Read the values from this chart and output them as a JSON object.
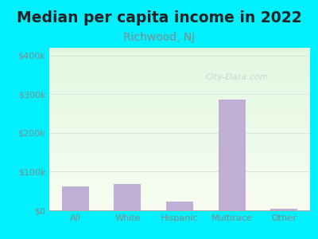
{
  "title": "Median per capita income in 2022",
  "subtitle": "Richwood, NJ",
  "categories": [
    "All",
    "White",
    "Hispanic",
    "Multirace",
    "Other"
  ],
  "values": [
    62000,
    67000,
    22000,
    287000,
    5000
  ],
  "bar_color": "#c0aed4",
  "title_fontsize": 13.5,
  "title_color": "#222222",
  "subtitle_fontsize": 10,
  "subtitle_color": "#888888",
  "tick_color": "#888888",
  "tick_fontsize": 8,
  "ylim": [
    0,
    420000
  ],
  "yticks": [
    0,
    100000,
    200000,
    300000,
    400000
  ],
  "ytick_labels": [
    "$0",
    "$100k",
    "$200k",
    "$300k",
    "$400k"
  ],
  "background_outer": "#00f0ff",
  "watermark": "City-Data.com",
  "watermark_color": "#cccccc",
  "grid_color": "#dddddd"
}
